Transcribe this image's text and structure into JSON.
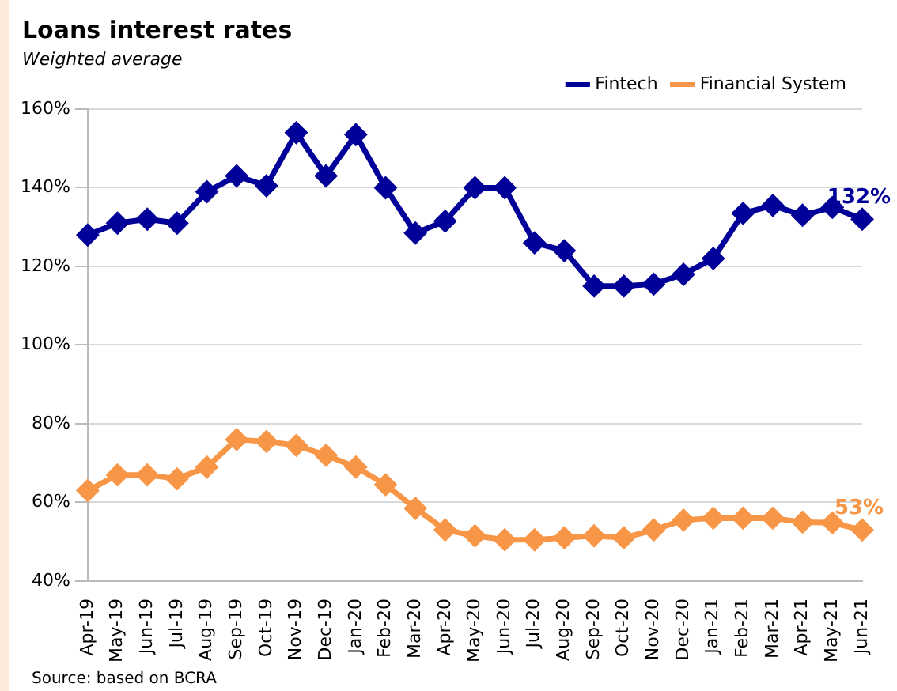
{
  "chart_data": {
    "type": "line",
    "title": "Loans interest rates",
    "subtitle": "Weighted average",
    "categories": [
      "Apr-19",
      "May-19",
      "Jun-19",
      "Jul-19",
      "Aug-19",
      "Sep-19",
      "Oct-19",
      "Nov-19",
      "Dec-19",
      "Jan-20",
      "Feb-20",
      "Mar-20",
      "Apr-20",
      "May-20",
      "Jun-20",
      "Jul-20",
      "Aug-20",
      "Sep-20",
      "Oct-20",
      "Nov-20",
      "Dec-20",
      "Jan-21",
      "Feb-21",
      "Mar-21",
      "Apr-21",
      "May-21",
      "Jun-21"
    ],
    "series": [
      {
        "name": "Fintech",
        "color": "#000099",
        "values": [
          128,
          131,
          132,
          131,
          139,
          143,
          140.5,
          154,
          143,
          153.5,
          140,
          128.5,
          131.5,
          140,
          140,
          126,
          124,
          115,
          115,
          115.5,
          118,
          122,
          133.5,
          135.5,
          133,
          135,
          132
        ]
      },
      {
        "name": "Financial System",
        "color": "#f79646",
        "values": [
          63,
          67,
          67,
          66,
          69,
          76,
          75.5,
          74.5,
          72,
          69,
          64.5,
          58.5,
          53,
          51.5,
          50.5,
          50.5,
          51,
          51.5,
          51,
          53,
          55.5,
          56,
          56,
          56,
          55,
          54.8,
          53
        ]
      }
    ],
    "ylim": [
      40,
      160
    ],
    "yticks": [
      {
        "value": 40,
        "label": "40%"
      },
      {
        "value": 60,
        "label": "60%"
      },
      {
        "value": 80,
        "label": "80%"
      },
      {
        "value": 100,
        "label": "100%"
      },
      {
        "value": 120,
        "label": "120%"
      },
      {
        "value": 140,
        "label": "140%"
      },
      {
        "value": 160,
        "label": "160%"
      }
    ],
    "grid": "y",
    "legend": "top right",
    "marker": "diamond",
    "line_style": "solid",
    "annotations": [
      {
        "text": "132%",
        "x": "Jun-21",
        "y": 132
      },
      {
        "text": "53%",
        "x": "Jun-21",
        "y": 53
      },
      "Source: based on BCRA"
    ]
  }
}
